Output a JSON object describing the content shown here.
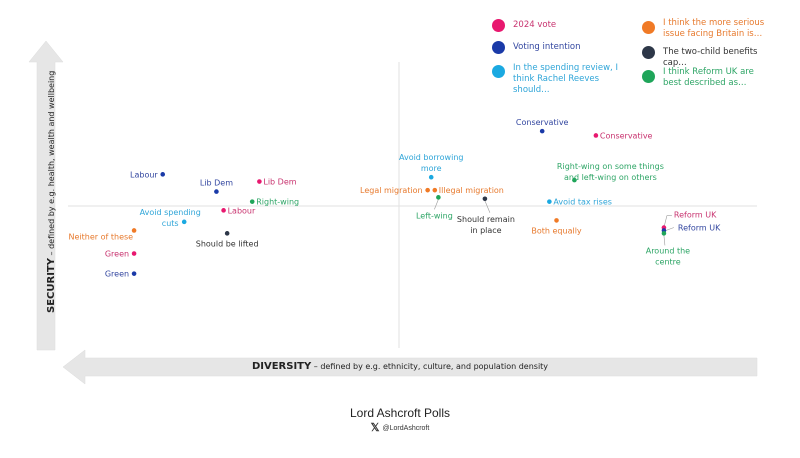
{
  "chart_data": {
    "type": "scatter",
    "title": "",
    "xlabel": {
      "bold": "DIVERSITY",
      "rest": " – defined by e.g. ethnicity, culture, and population density"
    },
    "ylabel": {
      "bold": "SECURITY",
      "rest": " – defined by e.g. health, wealth and wellbeing"
    },
    "xlim": [
      -100,
      100
    ],
    "ylim": [
      -100,
      100
    ],
    "grid": false,
    "legend_position": "top-right",
    "series": [
      {
        "name": "2024 vote",
        "color": "#e8186f",
        "points": [
          {
            "label": "Labour",
            "x": -49,
            "y": -3,
            "anchor": "right"
          },
          {
            "label": "Lib Dem",
            "x": -39,
            "y": 17,
            "anchor": "right"
          },
          {
            "label": "Green",
            "x": -74,
            "y": -33,
            "anchor": "left"
          },
          {
            "label": "Conservative",
            "x": 55,
            "y": 49,
            "anchor": "right"
          },
          {
            "label": "Reform UK",
            "x": 74,
            "y": -15,
            "anchor": "right-callout-up"
          }
        ]
      },
      {
        "name": "Voting intention",
        "color": "#1a3aa8",
        "points": [
          {
            "label": "Labour",
            "x": -66,
            "y": 22,
            "anchor": "left"
          },
          {
            "label": "Lib Dem",
            "x": -51,
            "y": 10,
            "anchor": "top"
          },
          {
            "label": "Green",
            "x": -74,
            "y": -47,
            "anchor": "left"
          },
          {
            "label": "Conservative",
            "x": 40,
            "y": 52,
            "anchor": "top"
          },
          {
            "label": "Reform UK",
            "x": 74,
            "y": -17,
            "anchor": "right-callout"
          }
        ]
      },
      {
        "name": "In the spending review, I think Rachel Reeves should…",
        "color": "#1ba9e1",
        "points": [
          {
            "label": "Avoid spending cuts",
            "x": -60,
            "y": -11,
            "anchor": "left-2line"
          },
          {
            "label": "Avoid borrowing more",
            "x": 9,
            "y": 20,
            "anchor": "top-2line"
          },
          {
            "label": "Avoid tax rises",
            "x": 42,
            "y": 3,
            "anchor": "right"
          }
        ]
      },
      {
        "name": "I think the more serious issue facing Britain is…",
        "color": "#f07a26",
        "points": [
          {
            "label": "Neither of these",
            "x": -74,
            "y": -17,
            "anchor": "left-low"
          },
          {
            "label": "Legal migration",
            "x": 8,
            "y": 11,
            "anchor": "left"
          },
          {
            "label": "Illegal migration",
            "x": 10,
            "y": 11,
            "anchor": "right"
          },
          {
            "label": "Both equally",
            "x": 44,
            "y": -10,
            "anchor": "bottom"
          }
        ]
      },
      {
        "name": "The two-child benefits cap…",
        "color": "#2d3748",
        "points": [
          {
            "label": "Should be lifted",
            "x": -48,
            "y": -19,
            "anchor": "bottom"
          },
          {
            "label": "Should remain in place",
            "x": 24,
            "y": 5,
            "anchor": "bottom-callout-2line"
          }
        ]
      },
      {
        "name": "I think Reform UK are best described as…",
        "color": "#1fa55a",
        "points": [
          {
            "label": "Right-wing",
            "x": -41,
            "y": 3,
            "anchor": "right"
          },
          {
            "label": "Left-wing",
            "x": 11,
            "y": 6,
            "anchor": "bottom-callout"
          },
          {
            "label": "Right-wing on some things and left-wing on others",
            "x": 49,
            "y": 18,
            "anchor": "top-right-2line"
          },
          {
            "label": "Around the centre",
            "x": 74,
            "y": -19,
            "anchor": "bottom-callout-2line"
          }
        ]
      }
    ]
  },
  "legend": [
    {
      "label": "2024 vote",
      "color": "#e8186f",
      "text_color": "#c8336f"
    },
    {
      "label": "Voting intention",
      "color": "#1a3aa8",
      "text_color": "#3347a0"
    },
    {
      "label": "In the spending review, I think Rachel Reeves should…",
      "color": "#1ba9e1",
      "text_color": "#2fa5d8"
    },
    {
      "label": "I think the more serious issue facing Britain is…",
      "color": "#f07a26",
      "text_color": "#e77a2e"
    },
    {
      "label": "The two-child benefits cap…",
      "color": "#2d3748",
      "text_color": "#333333"
    },
    {
      "label": "I think Reform UK are best described as…",
      "color": "#1fa55a",
      "text_color": "#2ea566"
    }
  ],
  "footer": {
    "title": "Lord Ashcroft Polls",
    "handle": "@LordAshcroft",
    "x_logo": "𝕏"
  }
}
